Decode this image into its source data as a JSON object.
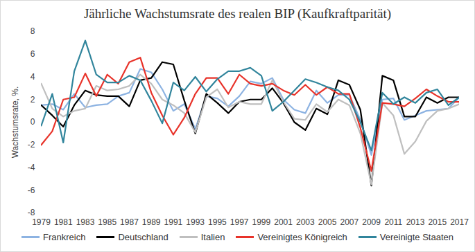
{
  "chart_data": {
    "type": "line",
    "title": "Jährliche Wachstumsrate des realen BIP (Kaufkraftparität)",
    "y_label": "Wachstumsrate, %.",
    "x": [
      1979,
      1980,
      1981,
      1982,
      1983,
      1984,
      1985,
      1986,
      1987,
      1988,
      1989,
      1990,
      1991,
      1992,
      1993,
      1994,
      1995,
      1996,
      1997,
      1998,
      1999,
      2000,
      2001,
      2002,
      2003,
      2004,
      2005,
      2006,
      2007,
      2008,
      2009,
      2010,
      2011,
      2012,
      2013,
      2014,
      2015,
      2016,
      2017
    ],
    "xlim": [
      1979,
      2017
    ],
    "xticks": [
      1979,
      1981,
      1983,
      1985,
      1987,
      1989,
      1991,
      1993,
      1995,
      1997,
      1999,
      2001,
      2003,
      2005,
      2007,
      2009,
      2011,
      2013,
      2015,
      2017
    ],
    "ylim": [
      -8,
      8
    ],
    "yticks": [
      -8,
      -6,
      -4,
      -2,
      0,
      2,
      4,
      6,
      8
    ],
    "grid": false,
    "legend": "bottom",
    "series": [
      {
        "name": "Frankreich",
        "color": "#8db3e2",
        "values": [
          1.5,
          1.6,
          1.1,
          2.5,
          1.3,
          1.5,
          1.6,
          2.3,
          2.6,
          4.7,
          4.4,
          2.9,
          1.0,
          1.6,
          -0.6,
          2.3,
          2.1,
          1.4,
          2.3,
          3.6,
          3.4,
          3.9,
          2.0,
          1.1,
          0.8,
          2.8,
          1.7,
          2.4,
          2.4,
          0.2,
          -2.9,
          2.0,
          2.1,
          0.2,
          0.6,
          1.0,
          1.1,
          1.2,
          2.2
        ]
      },
      {
        "name": "Deutschland",
        "color": "#000000",
        "values": [
          1.5,
          0.6,
          -0.4,
          1.5,
          2.8,
          2.4,
          2.3,
          2.3,
          1.4,
          3.7,
          3.9,
          5.3,
          5.1,
          1.9,
          -1.0,
          2.5,
          1.7,
          0.8,
          1.8,
          2.0,
          2.0,
          3.0,
          1.7,
          0.0,
          -0.7,
          1.2,
          0.7,
          3.7,
          3.3,
          1.1,
          -5.6,
          4.1,
          3.7,
          0.5,
          0.5,
          2.2,
          1.7,
          2.2,
          2.2
        ]
      },
      {
        "name": "Italien",
        "color": "#bfbfbf",
        "values": [
          3.4,
          1.2,
          0.5,
          1.0,
          1.2,
          3.2,
          2.8,
          2.9,
          3.2,
          4.2,
          3.4,
          2.0,
          1.5,
          0.8,
          -0.9,
          2.2,
          2.9,
          1.3,
          1.8,
          1.6,
          1.6,
          3.7,
          1.8,
          0.3,
          0.2,
          1.6,
          0.9,
          2.0,
          1.5,
          -1.0,
          -5.5,
          1.7,
          0.6,
          -2.8,
          -1.7,
          0.1,
          1.0,
          1.2,
          1.6
        ]
      },
      {
        "name": "Vereinigtes Königreich",
        "color": "#e8332a",
        "values": [
          -2.0,
          -0.8,
          2.0,
          2.2,
          4.3,
          2.3,
          4.2,
          3.4,
          5.3,
          5.7,
          2.6,
          0.6,
          -1.1,
          0.4,
          2.5,
          3.9,
          3.9,
          2.5,
          4.2,
          3.4,
          3.2,
          3.4,
          2.8,
          2.4,
          3.3,
          2.4,
          3.1,
          2.5,
          2.5,
          -0.5,
          -4.3,
          1.7,
          1.6,
          1.4,
          2.1,
          2.9,
          2.3,
          1.8,
          1.8
        ]
      },
      {
        "name": "Vereinigte Staaten",
        "color": "#31859c",
        "values": [
          -0.3,
          2.5,
          -1.8,
          4.5,
          7.2,
          4.2,
          3.5,
          3.5,
          4.1,
          3.7,
          1.9,
          -0.1,
          3.5,
          2.8,
          4.0,
          2.7,
          3.8,
          4.5,
          4.5,
          4.8,
          4.1,
          1.0,
          1.8,
          2.8,
          3.8,
          3.5,
          3.1,
          2.8,
          2.0,
          0.0,
          -2.5,
          2.6,
          1.6,
          2.2,
          1.7,
          2.6,
          2.9,
          1.5,
          2.2
        ]
      }
    ]
  }
}
